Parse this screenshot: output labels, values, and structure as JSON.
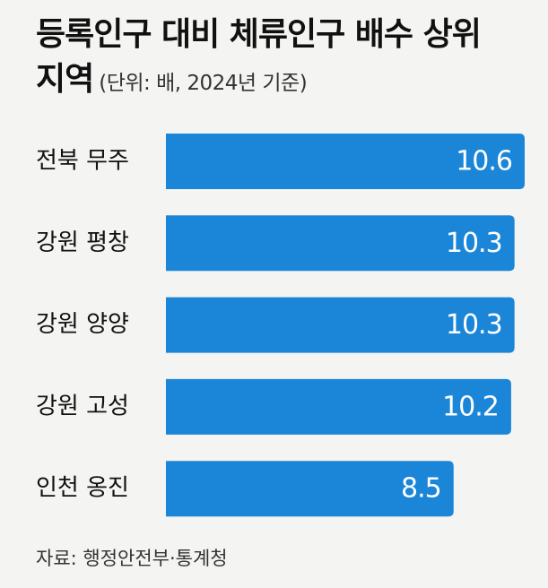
{
  "chart_data": {
    "type": "bar",
    "orientation": "horizontal",
    "title": "등록인구 대비 체류인구 배수 상위지역",
    "subtitle": "(단위: 배, 2024년 기준)",
    "categories": [
      "전북 무주",
      "강원 평창",
      "강원 양양",
      "강원 고성",
      "인천 옹진"
    ],
    "values": [
      10.6,
      10.3,
      10.3,
      10.2,
      8.5
    ],
    "color": "#1b86d8",
    "source": "자료: 행정안전부·통계청"
  }
}
